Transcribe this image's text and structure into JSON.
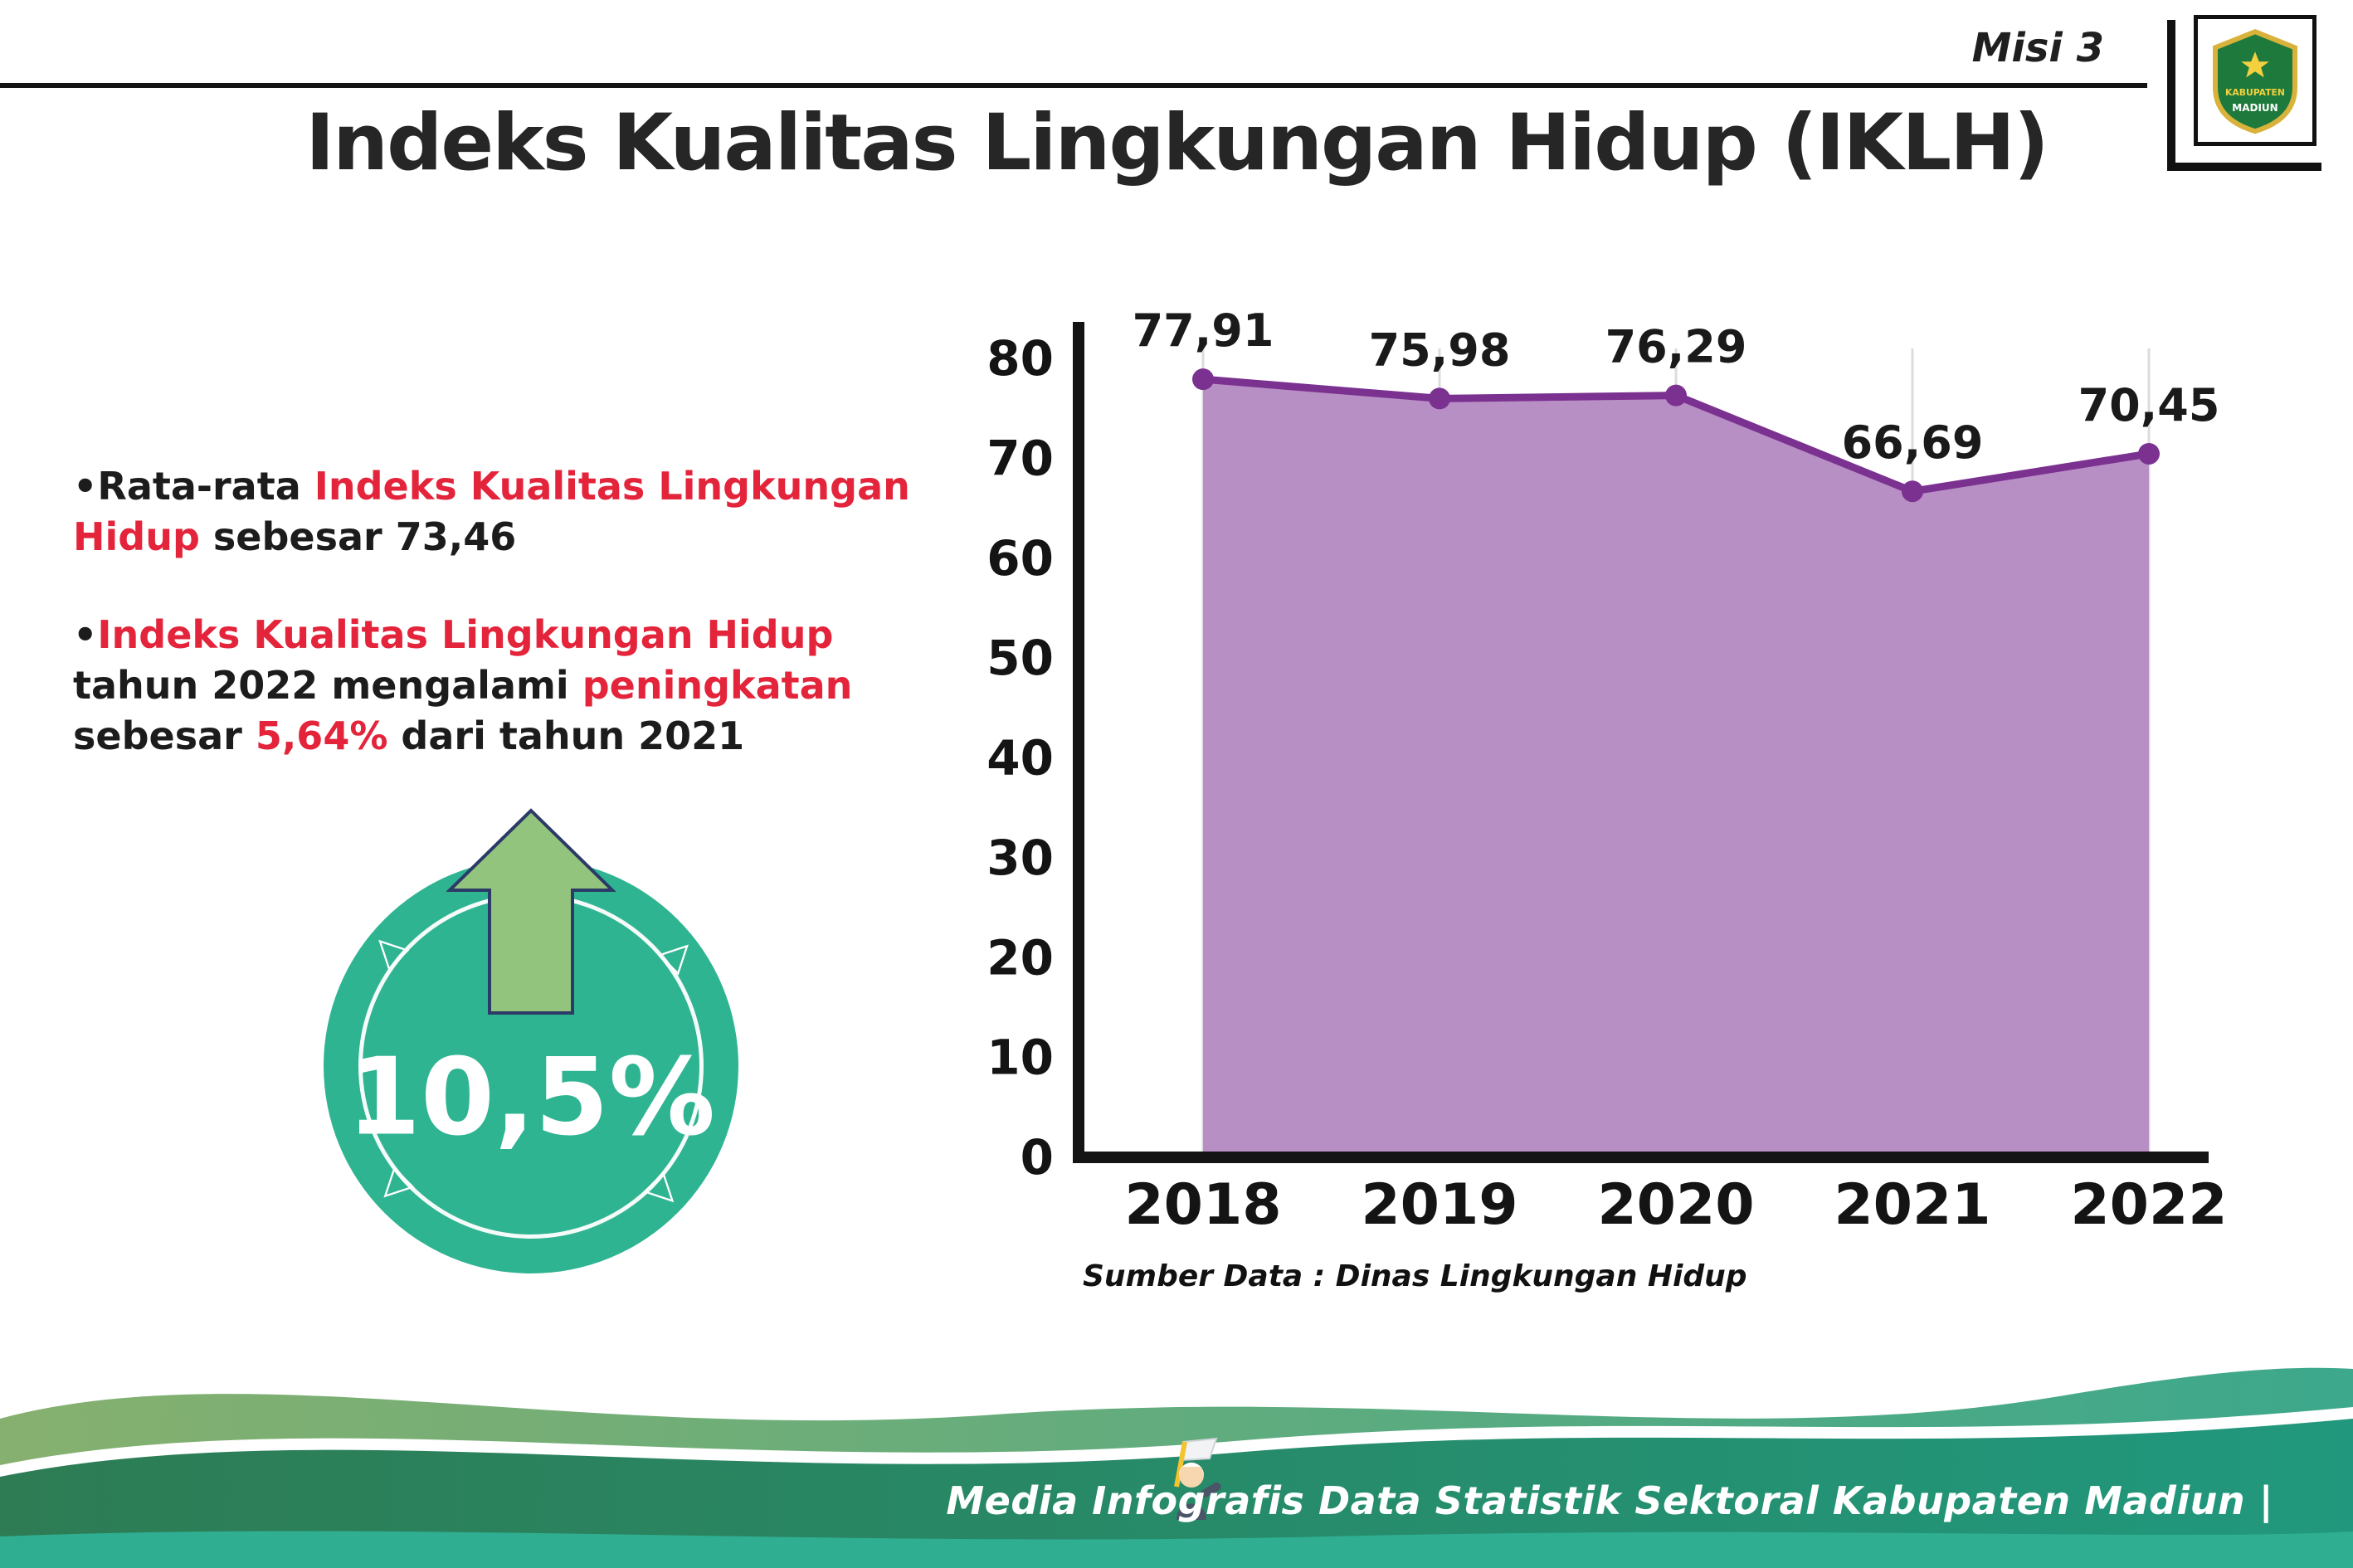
{
  "header": {
    "misi_label": "Misi 3",
    "title": "Indeks Kualitas Lingkungan Hidup (IKLH)"
  },
  "logo": {
    "name": "Kabupaten Madiun",
    "line1": "KABUPATEN",
    "line2": "MADIUN"
  },
  "bullet_char": "•",
  "triangle_char": "▷",
  "bullet1": {
    "pre": "Rata-rata ",
    "red": "Indeks Kualitas Lingkungan Hidup",
    "post": " sebesar 73,46"
  },
  "bullet2": {
    "red1": "Indeks Kualitas Lingkungan Hidup",
    "mid1": " tahun 2022 mengalami ",
    "red2": "peningkatan",
    "mid2": " sebesar ",
    "red3": "5,64%",
    "post": " dari tahun 2021"
  },
  "badge": {
    "value": "10,5%"
  },
  "chart_data": {
    "type": "area",
    "categories": [
      "2018",
      "2019",
      "2020",
      "2021",
      "2022"
    ],
    "values": [
      77.91,
      75.98,
      76.29,
      66.69,
      70.45
    ],
    "labels": [
      "77,91",
      "75,98",
      "76,29",
      "66,69",
      "70,45"
    ],
    "title": "",
    "xlabel": "",
    "ylabel": "",
    "ylim": [
      0,
      80
    ],
    "yticks": [
      0,
      10,
      20,
      30,
      40,
      50,
      60,
      70,
      80
    ],
    "grid": true,
    "legend": "none",
    "fill_color": "#b88fc5",
    "line_color": "#7b3190",
    "source": "Sumber Data : Dinas Lingkungan Hidup"
  },
  "colors": {
    "accent_red": "#e3243b",
    "badge_teal": "#2fb492",
    "arrow_green": "#93c47d",
    "footer_green_dark": "#2d7c54",
    "footer_teal": "#21987d"
  },
  "footer": {
    "text": "Media Infografis Data Statistik Sektoral Kabupaten Madiun |"
  }
}
